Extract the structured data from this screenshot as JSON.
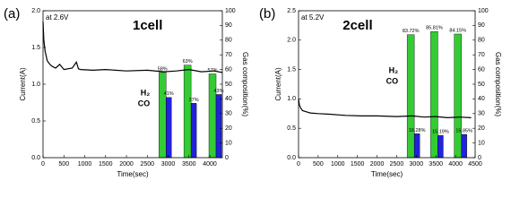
{
  "chart_data": [
    {
      "type": "combo",
      "panel_label": "(a)",
      "title": "1cell",
      "annotation": "at 2.6V",
      "x_label": "Time(sec)",
      "y_label": "Current(A)",
      "y2_label": "Gas composition(%)",
      "xlim": [
        0,
        4300
      ],
      "xticks": [
        0,
        500,
        1000,
        1500,
        2000,
        2500,
        3000,
        3500,
        4000
      ],
      "ylim": [
        0,
        2
      ],
      "yticks": [
        {
          "value": 0,
          "label": "0.0"
        },
        0.5,
        {
          "value": 1,
          "label": "1.0"
        },
        1.5,
        {
          "value": 2,
          "label": "2.0"
        }
      ],
      "y2lim": [
        0,
        100
      ],
      "y2ticks": [
        0,
        10,
        20,
        30,
        40,
        50,
        60,
        70,
        80,
        90,
        100
      ],
      "series": [
        {
          "type": "line",
          "color": "#000000",
          "x": [
            0,
            20,
            50,
            100,
            150,
            200,
            300,
            400,
            500,
            700,
            800,
            850,
            900,
            1200,
            1500,
            2000,
            2500,
            2900,
            3200,
            3500,
            3800,
            4100,
            4300
          ],
          "values": [
            1.85,
            1.6,
            1.45,
            1.32,
            1.28,
            1.25,
            1.22,
            1.27,
            1.2,
            1.22,
            1.3,
            1.21,
            1.2,
            1.19,
            1.2,
            1.18,
            1.19,
            1.17,
            1.18,
            1.2,
            1.17,
            1.18,
            1.16
          ]
        },
        {
          "type": "bar",
          "name": "H₂",
          "color": "#33cc33",
          "axis": "y2",
          "x": [
            2950,
            3550,
            4150
          ],
          "values": [
            58,
            63,
            57
          ],
          "value_labels": [
            "58%",
            "63%",
            "57%"
          ]
        },
        {
          "type": "bar",
          "name": "CO",
          "color": "#2222dd",
          "axis": "y2",
          "x": [
            2950,
            3550,
            4150
          ],
          "values": [
            41,
            37,
            43
          ],
          "value_labels": [
            "41%",
            "37%",
            "43%"
          ]
        }
      ]
    },
    {
      "type": "combo",
      "panel_label": "(b)",
      "title": "2cell",
      "annotation": "at 5.2V",
      "x_label": "Time(sec)",
      "y_label": "Current(A)",
      "y2_label": "Gas composition(%)",
      "xlim": [
        0,
        4500
      ],
      "xticks": [
        0,
        500,
        1000,
        1500,
        2000,
        2500,
        3000,
        3500,
        4000,
        4500
      ],
      "ylim": [
        0,
        2.5
      ],
      "yticks": [
        {
          "value": 0,
          "label": "0.0"
        },
        0.5,
        {
          "value": 1,
          "label": "1.0"
        },
        1.5,
        {
          "value": 2,
          "label": "2.0"
        },
        2.5
      ],
      "y2lim": [
        0,
        100
      ],
      "y2ticks": [
        0,
        10,
        20,
        30,
        40,
        50,
        60,
        70,
        80,
        90,
        100
      ],
      "series": [
        {
          "type": "line",
          "color": "#000000",
          "x": [
            0,
            20,
            50,
            100,
            200,
            300,
            500,
            800,
            1200,
            1600,
            2000,
            2500,
            2900,
            3200,
            3500,
            3800,
            4100,
            4400
          ],
          "values": [
            1.0,
            0.9,
            0.85,
            0.8,
            0.78,
            0.76,
            0.75,
            0.74,
            0.72,
            0.71,
            0.71,
            0.7,
            0.71,
            0.69,
            0.7,
            0.68,
            0.69,
            0.68
          ]
        },
        {
          "type": "bar",
          "name": "H₂",
          "color": "#33cc33",
          "axis": "y2",
          "x": [
            2950,
            3550,
            4150
          ],
          "values": [
            83.72,
            85.81,
            84.15
          ],
          "value_labels": [
            "83.72%",
            "85.81%",
            "84.15%"
          ]
        },
        {
          "type": "bar",
          "name": "CO",
          "color": "#2222dd",
          "axis": "y2",
          "x": [
            2950,
            3550,
            4150
          ],
          "values": [
            16.28,
            15.19,
            15.85
          ],
          "value_labels": [
            "16.28%",
            "15.19%",
            "15.85%"
          ]
        }
      ]
    }
  ]
}
